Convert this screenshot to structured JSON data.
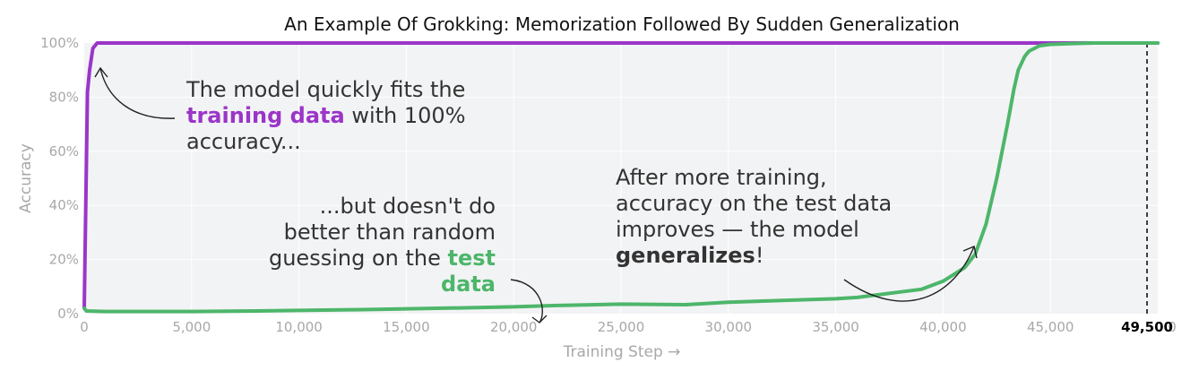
{
  "chart_data": {
    "type": "line",
    "title": "An Example Of Grokking: Memorization Followed By Sudden Generalization",
    "xlabel": "Training Step →",
    "ylabel": "Accuracy",
    "xlim": [
      0,
      50000
    ],
    "ylim": [
      0,
      100
    ],
    "x_ticks": [
      {
        "value": 0,
        "label": "0"
      },
      {
        "value": 5000,
        "label": "5,000"
      },
      {
        "value": 10000,
        "label": "10,000"
      },
      {
        "value": 15000,
        "label": "15,000"
      },
      {
        "value": 20000,
        "label": "20,000"
      },
      {
        "value": 25000,
        "label": "25,000"
      },
      {
        "value": 30000,
        "label": "30,000"
      },
      {
        "value": 35000,
        "label": "35,000"
      },
      {
        "value": 40000,
        "label": "40,000"
      },
      {
        "value": 45000,
        "label": "45,000"
      }
    ],
    "x_end_label": {
      "value": 50000,
      "label": "0"
    },
    "y_ticks": [
      {
        "value": 0,
        "label": "0%"
      },
      {
        "value": 20,
        "label": "20%"
      },
      {
        "value": 40,
        "label": "40%"
      },
      {
        "value": 60,
        "label": "60%"
      },
      {
        "value": 80,
        "label": "80%"
      },
      {
        "value": 100,
        "label": "100%"
      }
    ],
    "grid": true,
    "series": [
      {
        "color": "#9b35c8",
        "x": [
          0,
          100,
          150,
          250,
          400,
          600,
          1000,
          5000,
          10000,
          20000,
          30000,
          40000,
          45000,
          50000
        ],
        "y": [
          2,
          55,
          82,
          90,
          98,
          100,
          100,
          100,
          100,
          100,
          100,
          100,
          100,
          100
        ]
      },
      {
        "color": "#4db66a",
        "x": [
          0,
          100,
          1000,
          5000,
          8000,
          10000,
          13000,
          15000,
          18000,
          20000,
          22000,
          25000,
          28000,
          30000,
          33000,
          35000,
          36000,
          37000,
          38000,
          39000,
          40000,
          41000,
          41500,
          42000,
          42500,
          43000,
          43300,
          43500,
          43800,
          44000,
          44500,
          45000,
          46000,
          47000,
          48000,
          49000,
          50000
        ],
        "y": [
          2,
          1,
          0.8,
          0.8,
          1,
          1.2,
          1.5,
          1.8,
          2.2,
          2.5,
          3,
          3.5,
          3.3,
          4.2,
          5,
          5.5,
          6,
          7,
          8,
          9,
          12,
          17,
          22,
          33,
          50,
          70,
          83,
          90,
          95,
          97,
          99,
          99.5,
          99.8,
          100,
          100,
          100,
          100
        ]
      }
    ],
    "marker": {
      "x": 49500,
      "label": "49,500"
    },
    "annotations": [
      {
        "lines": [
          [
            {
              "text": "The model quickly fits the"
            }
          ],
          [
            {
              "text": "training data",
              "bold": true,
              "color": "#9b35c8"
            },
            {
              "text": " with 100%"
            }
          ],
          [
            {
              "text": "accuracy..."
            }
          ]
        ]
      },
      {
        "lines": [
          [
            {
              "text": "...but doesn't do"
            }
          ],
          [
            {
              "text": "better than random"
            }
          ],
          [
            {
              "text": "guessing on the "
            },
            {
              "text": "test",
              "bold": true,
              "color": "#4db66a"
            }
          ],
          [
            {
              "text": "data",
              "bold": true,
              "color": "#4db66a"
            }
          ]
        ]
      },
      {
        "lines": [
          [
            {
              "text": "After more training,"
            }
          ],
          [
            {
              "text": "accuracy on the test data"
            }
          ],
          [
            {
              "text": "improves — the model"
            }
          ],
          [
            {
              "text": "generalizes",
              "bold": true,
              "color": "#333333"
            },
            {
              "text": "!"
            }
          ]
        ]
      }
    ],
    "colors": {
      "plot_bg": "#f2f3f5",
      "grid": "#ffffff",
      "train": "#9b35c8",
      "test": "#4db66a"
    }
  }
}
